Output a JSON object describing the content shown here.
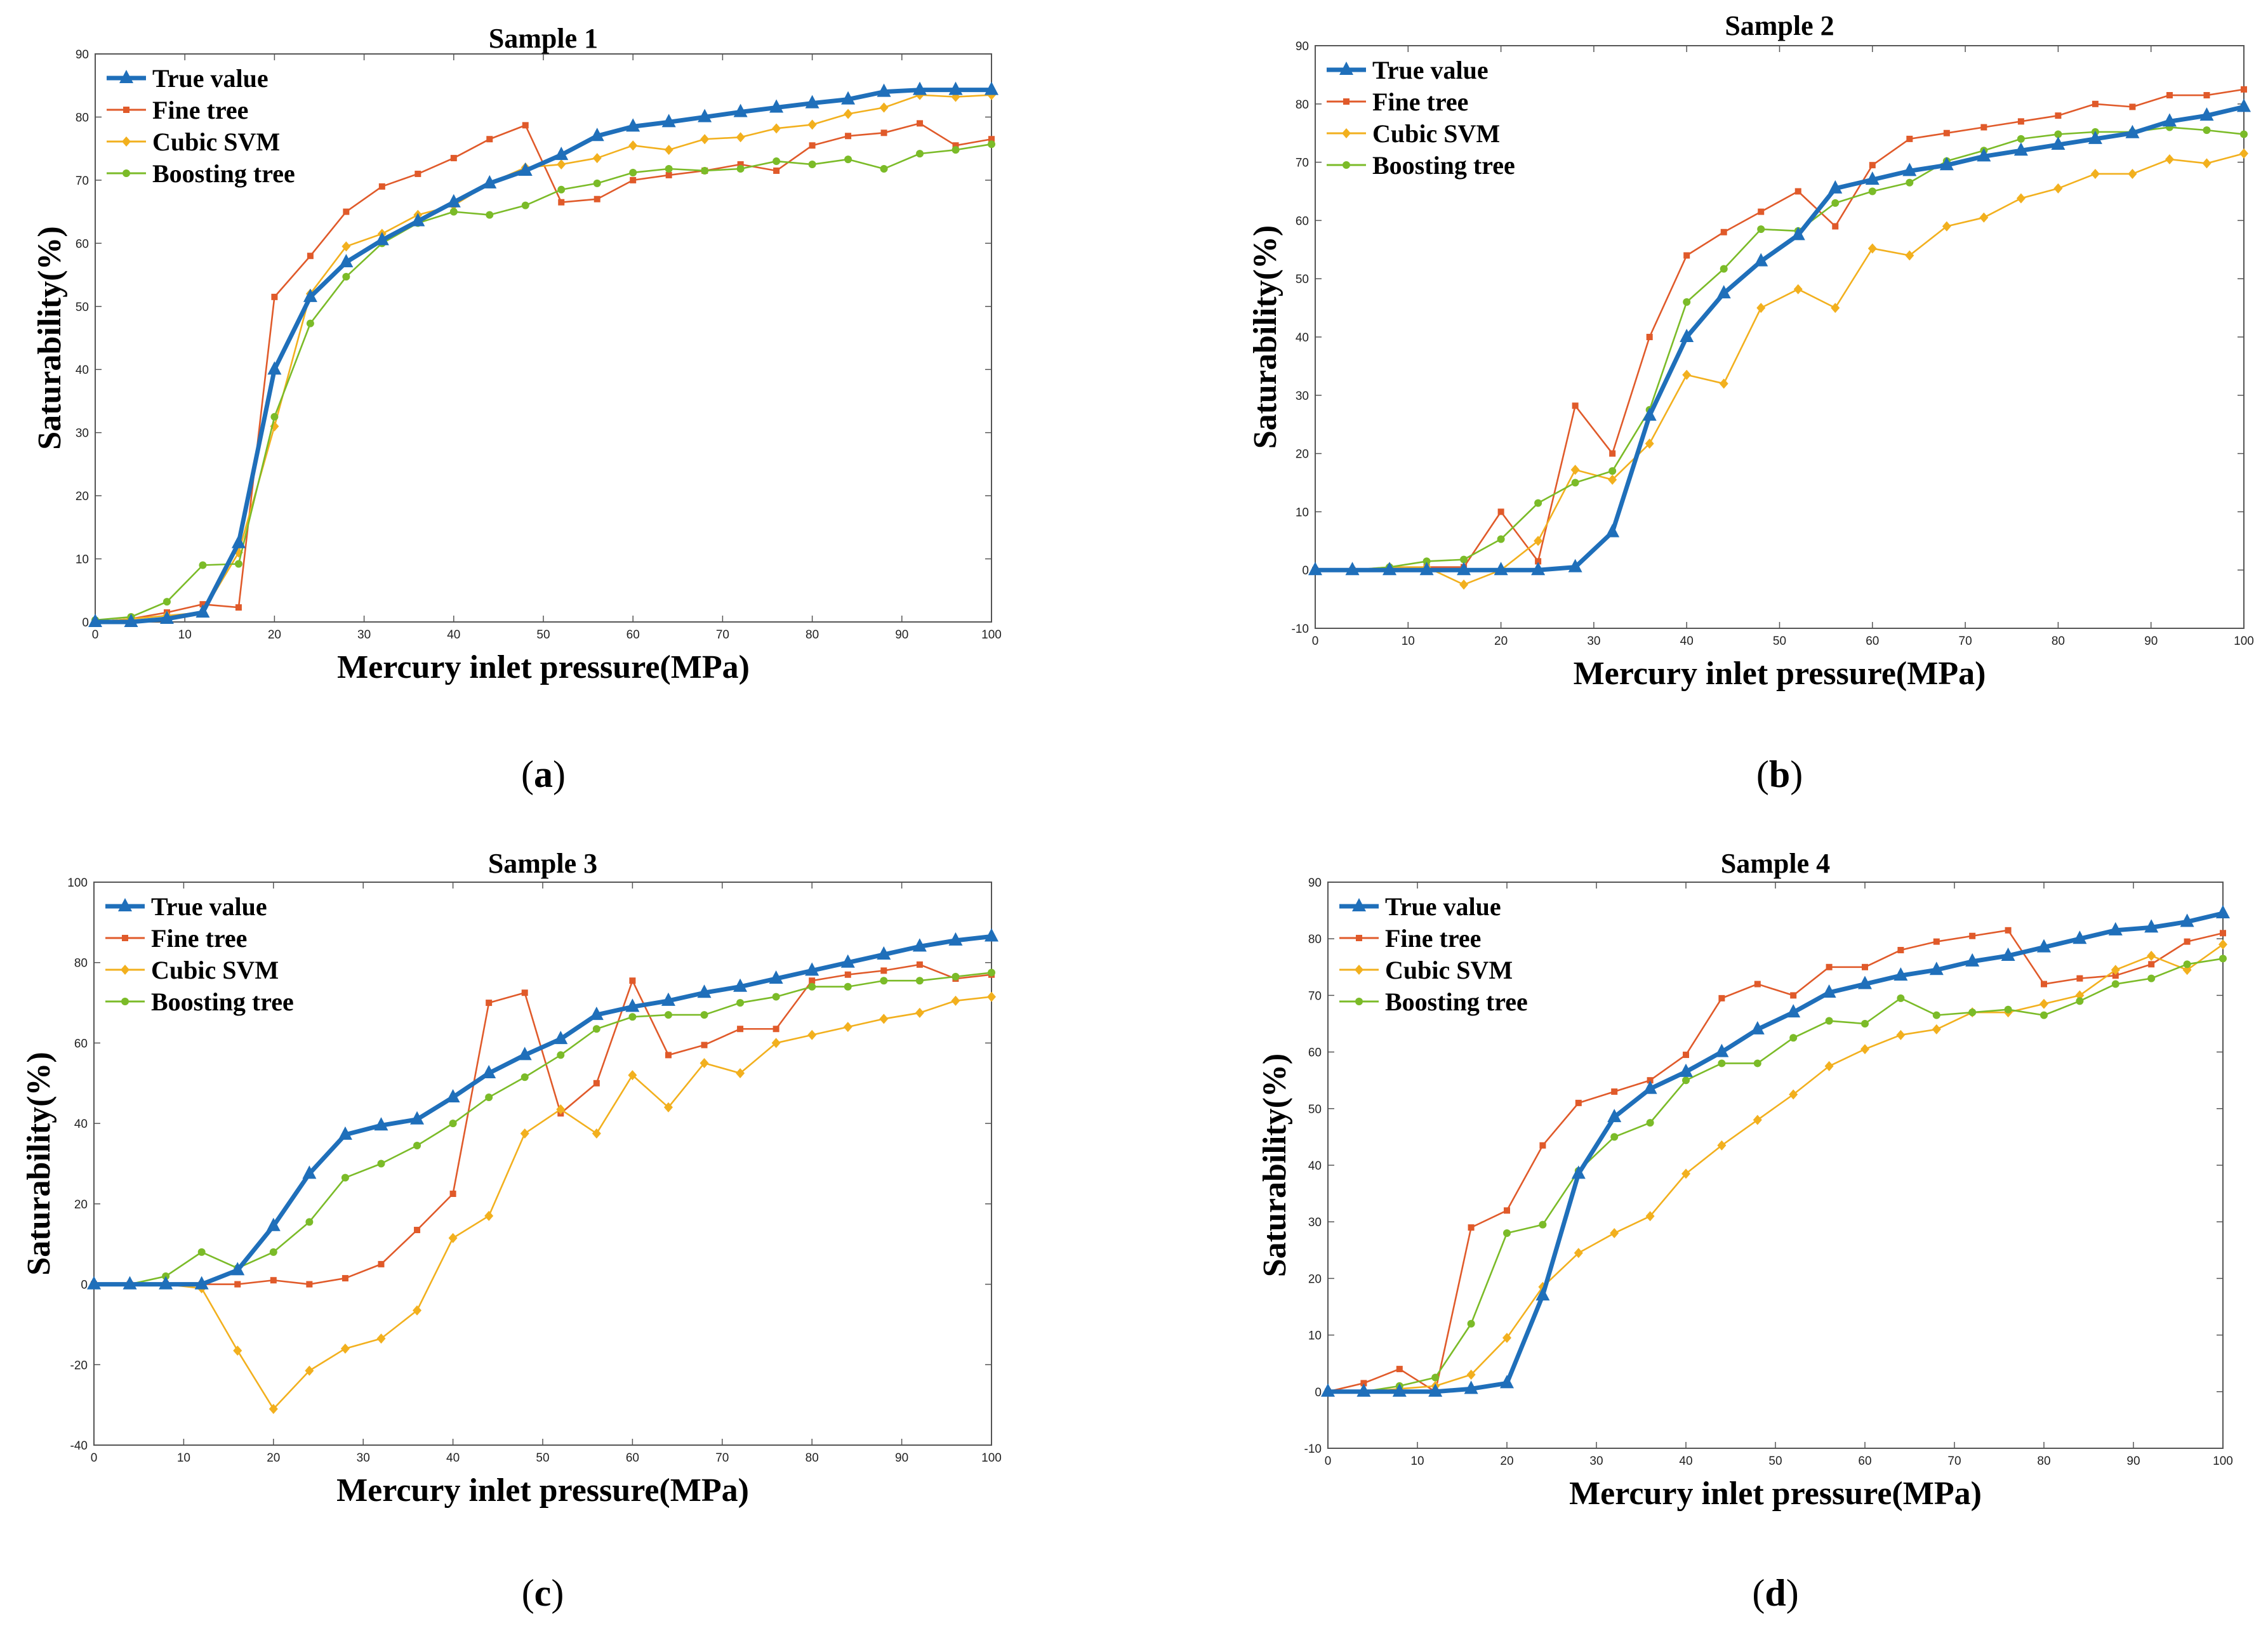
{
  "colors": {
    "True value": "#1f6fba",
    "Fine tree": "#e05a2a",
    "Cubic SVM": "#f2b01e",
    "Boosting tree": "#7bbb28"
  },
  "chart_data": [
    {
      "type": "line",
      "title": "Sample 1",
      "xlabel": "Mercury inlet pressure(MPa)",
      "ylabel": "Saturability(%)",
      "panel_label": "a",
      "xlim": [
        0,
        100
      ],
      "ylim": [
        0,
        90
      ],
      "xticks": [
        0,
        10,
        20,
        30,
        40,
        50,
        60,
        70,
        80,
        90,
        100
      ],
      "yticks": [
        0,
        10,
        20,
        30,
        40,
        50,
        60,
        70,
        80,
        90
      ],
      "legend": [
        "True value",
        "Fine tree",
        "Cubic SVM",
        "Boosting tree"
      ],
      "legend_position": "top-left",
      "x": [
        0,
        4,
        8,
        12,
        16,
        20,
        24,
        28,
        32,
        36,
        40,
        44,
        48,
        52,
        56,
        60,
        64,
        68,
        72,
        76,
        80,
        84,
        88,
        92,
        96,
        100
      ],
      "series": [
        {
          "name": "True value",
          "values": [
            0,
            0,
            0.5,
            1.5,
            12.5,
            40,
            51.5,
            57,
            60.5,
            63.5,
            66.5,
            69.5,
            71.5,
            74,
            77,
            78.5,
            79.2,
            80,
            80.8,
            81.5,
            82.2,
            82.8,
            84,
            84.3,
            84.3,
            84.3
          ]
        },
        {
          "name": "Fine tree",
          "values": [
            0,
            0.5,
            1.5,
            2.8,
            2.3,
            51.5,
            58,
            65,
            69,
            71,
            73.5,
            76.5,
            78.7,
            66.5,
            67,
            70,
            70.8,
            71.5,
            72.5,
            71.5,
            75.5,
            77,
            77.5,
            79,
            75.5,
            76.5
          ]
        },
        {
          "name": "Cubic SVM",
          "values": [
            0,
            0.5,
            1,
            1.5,
            11,
            31,
            52,
            59.5,
            61.5,
            64.5,
            66,
            69.5,
            72,
            72.5,
            73.5,
            75.5,
            74.8,
            76.5,
            76.8,
            78.2,
            78.8,
            80.5,
            81.5,
            83.5,
            83.2,
            83.5
          ]
        },
        {
          "name": "Boosting tree",
          "values": [
            0.3,
            0.8,
            3.2,
            9,
            9.2,
            32.5,
            47.3,
            54.7,
            60,
            63.2,
            65,
            64.5,
            66,
            68.5,
            69.5,
            71.2,
            71.8,
            71.5,
            71.8,
            73,
            72.5,
            73.3,
            71.8,
            74.2,
            74.8,
            75.7
          ]
        }
      ]
    },
    {
      "type": "line",
      "title": "Sample 2",
      "xlabel": "Mercury inlet pressure(MPa)",
      "ylabel": "Saturability(%)",
      "panel_label": "b",
      "xlim": [
        0,
        100
      ],
      "ylim": [
        -10,
        90
      ],
      "xticks": [
        0,
        10,
        20,
        30,
        40,
        50,
        60,
        70,
        80,
        90,
        100
      ],
      "yticks": [
        -10,
        0,
        10,
        20,
        30,
        40,
        50,
        60,
        70,
        80,
        90
      ],
      "legend": [
        "True value",
        "Fine tree",
        "Cubic SVM",
        "Boosting tree"
      ],
      "legend_position": "top-left",
      "x": [
        0,
        4,
        8,
        12,
        16,
        20,
        24,
        28,
        32,
        36,
        40,
        44,
        48,
        52,
        56,
        60,
        64,
        68,
        72,
        76,
        80,
        84,
        88,
        92,
        96,
        100
      ],
      "series": [
        {
          "name": "True value",
          "values": [
            0,
            0,
            0,
            0,
            0,
            0,
            0,
            0.5,
            6.5,
            26.5,
            40,
            47.5,
            53,
            57.5,
            65.5,
            67,
            68.5,
            69.5,
            71,
            72,
            73,
            74,
            75,
            77,
            78,
            79.5
          ]
        },
        {
          "name": "Fine tree",
          "values": [
            0,
            0,
            0,
            0.5,
            0.5,
            10,
            1.5,
            28.2,
            20,
            40,
            54,
            58,
            61.5,
            65,
            59,
            69.5,
            74,
            75,
            76,
            77,
            78,
            80,
            79.5,
            81.5,
            81.5,
            82.5
          ]
        },
        {
          "name": "Cubic SVM",
          "values": [
            0,
            0,
            0.5,
            0.5,
            -2.5,
            0,
            5,
            17.2,
            15.5,
            21.7,
            33.5,
            32,
            45,
            48.2,
            45,
            55.2,
            54,
            59,
            60.5,
            63.8,
            65.5,
            68,
            68,
            70.5,
            69.8,
            71.5
          ]
        },
        {
          "name": "Boosting tree",
          "values": [
            0,
            0,
            0.5,
            1.5,
            1.8,
            5.3,
            11.5,
            15,
            17,
            27.5,
            46,
            51.7,
            58.5,
            58.2,
            63,
            65,
            66.5,
            70.2,
            72,
            74,
            74.8,
            75.2,
            75.2,
            76,
            75.5,
            74.8
          ]
        }
      ]
    },
    {
      "type": "line",
      "title": "Sample 3",
      "xlabel": "Mercury inlet pressure(MPa)",
      "ylabel": "Saturability(%)",
      "panel_label": "c",
      "xlim": [
        0,
        100
      ],
      "ylim": [
        -40,
        100
      ],
      "xticks": [
        0,
        10,
        20,
        30,
        40,
        50,
        60,
        70,
        80,
        90,
        100
      ],
      "yticks": [
        -40,
        -20,
        0,
        20,
        40,
        60,
        80,
        100
      ],
      "legend": [
        "True value",
        "Fine tree",
        "Cubic SVM",
        "Boosting tree"
      ],
      "legend_position": "top-left",
      "x": [
        0,
        4,
        8,
        12,
        16,
        20,
        24,
        28,
        32,
        36,
        40,
        44,
        48,
        52,
        56,
        60,
        64,
        68,
        72,
        76,
        80,
        84,
        88,
        92,
        96,
        100
      ],
      "series": [
        {
          "name": "True value",
          "values": [
            0,
            0,
            0,
            0,
            3.5,
            14.5,
            27.5,
            37.2,
            39.5,
            41,
            46.5,
            52.5,
            57,
            61,
            67,
            69,
            70.5,
            72.5,
            74,
            76,
            78,
            80,
            82,
            84,
            85.5,
            86.5
          ]
        },
        {
          "name": "Fine tree",
          "values": [
            0,
            0,
            0,
            0,
            0,
            1,
            0,
            1.5,
            5,
            13.5,
            22.5,
            70,
            72.5,
            42.5,
            50,
            75.5,
            57,
            59.5,
            63.5,
            63.5,
            75.5,
            77,
            78,
            79.5,
            76,
            77
          ]
        },
        {
          "name": "Cubic SVM",
          "values": [
            0,
            0,
            0,
            -1,
            -16.5,
            -31,
            -21.5,
            -16,
            -13.5,
            -6.5,
            11.5,
            17,
            37.5,
            43.5,
            37.5,
            52,
            44,
            55,
            52.5,
            60,
            62,
            64,
            66,
            67.5,
            70.5,
            71.5
          ]
        },
        {
          "name": "Boosting tree",
          "values": [
            0,
            0,
            2,
            8,
            4,
            8,
            15.5,
            26.5,
            30,
            34.5,
            40,
            46.5,
            51.5,
            57,
            63.5,
            66.5,
            67,
            67,
            70,
            71.5,
            74,
            74,
            75.5,
            75.5,
            76.5,
            77.5
          ]
        }
      ]
    },
    {
      "type": "line",
      "title": "Sample 4",
      "xlabel": "Mercury inlet pressure(MPa)",
      "ylabel": "Saturability(%)",
      "panel_label": "d",
      "xlim": [
        0,
        100
      ],
      "ylim": [
        -10,
        90
      ],
      "xticks": [
        0,
        10,
        20,
        30,
        40,
        50,
        60,
        70,
        80,
        90,
        100
      ],
      "yticks": [
        -10,
        0,
        10,
        20,
        30,
        40,
        50,
        60,
        70,
        80,
        90
      ],
      "legend": [
        "True value",
        "Fine tree",
        "Cubic SVM",
        "Boosting tree"
      ],
      "legend_position": "top-left",
      "x": [
        0,
        4,
        8,
        12,
        16,
        20,
        24,
        28,
        32,
        36,
        40,
        44,
        48,
        52,
        56,
        60,
        64,
        68,
        72,
        76,
        80,
        84,
        88,
        92,
        96,
        100
      ],
      "series": [
        {
          "name": "True value",
          "values": [
            0,
            0,
            0,
            0,
            0.5,
            1.5,
            17,
            38.5,
            48.5,
            53.5,
            56.5,
            60,
            64,
            67,
            70.5,
            72,
            73.5,
            74.5,
            76,
            77,
            78.5,
            80,
            81.5,
            82,
            83,
            84.5
          ]
        },
        {
          "name": "Fine tree",
          "values": [
            0,
            1.5,
            4,
            0,
            29,
            32,
            43.5,
            51,
            53,
            55,
            59.5,
            69.5,
            72,
            70,
            75,
            75,
            78,
            79.5,
            80.5,
            81.5,
            72,
            73,
            73.5,
            75.5,
            79.5,
            81
          ]
        },
        {
          "name": "Cubic SVM",
          "values": [
            0,
            0,
            0.5,
            1,
            3,
            9.5,
            18.5,
            24.5,
            28,
            31,
            38.5,
            43.5,
            48,
            52.5,
            57.5,
            60.5,
            63,
            64,
            67,
            67,
            68.5,
            70,
            74.5,
            77,
            74.5,
            79
          ]
        },
        {
          "name": "Boosting tree",
          "values": [
            0,
            0,
            1,
            2.5,
            12,
            28,
            29.5,
            39,
            45,
            47.5,
            55,
            58,
            58,
            62.5,
            65.5,
            65,
            69.5,
            66.5,
            67,
            67.5,
            66.5,
            69,
            72,
            73,
            75.5,
            76.5
          ]
        }
      ]
    }
  ]
}
